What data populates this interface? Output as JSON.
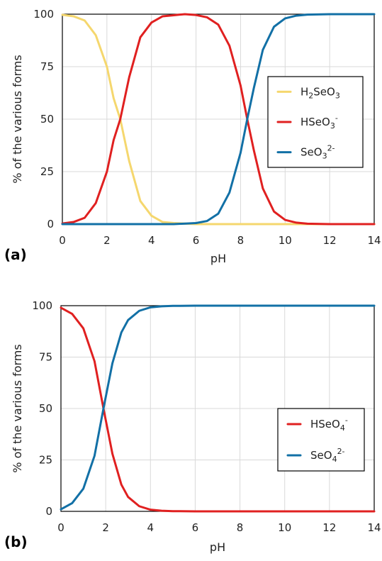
{
  "chart_data": [
    {
      "type": "line",
      "panel_label": "(a)",
      "xlabel": "pH",
      "ylabel": "% of the various forms",
      "xlim": [
        0,
        14
      ],
      "ylim": [
        0,
        100
      ],
      "xticks": [
        "0",
        "2",
        "4",
        "6",
        "8",
        "10",
        "12",
        "14"
      ],
      "yticks": [
        "0",
        "25",
        "50",
        "75",
        "100"
      ],
      "grid": true,
      "legend_position": "right-center",
      "series": [
        {
          "name": "H2SeO3",
          "label_base": "H",
          "label_sub1": "2",
          "label_mid": "SeO",
          "label_sub2": "3",
          "label_sup": "",
          "color": "#f5d76e",
          "x": [
            0,
            0.5,
            1,
            1.5,
            2,
            2.3,
            2.6,
            3,
            3.5,
            4,
            4.5,
            5,
            6,
            8,
            10,
            14
          ],
          "y": [
            99.7,
            99,
            97,
            90,
            75,
            60,
            50,
            30,
            11,
            4,
            1,
            0.5,
            0,
            0,
            0,
            0
          ]
        },
        {
          "name": "HSeO3-",
          "label_base": "HSeO",
          "label_sub1": "3",
          "label_mid": "",
          "label_sub2": "",
          "label_sup": "-",
          "color": "#e02020",
          "x": [
            0,
            0.5,
            1,
            1.5,
            2,
            2.3,
            2.6,
            3,
            3.5,
            4,
            4.5,
            5,
            5.5,
            6,
            6.5,
            7,
            7.5,
            8,
            8.3,
            8.6,
            9,
            9.5,
            10,
            10.5,
            11,
            12,
            14
          ],
          "y": [
            0.3,
            1,
            3,
            10,
            25,
            40,
            50,
            70,
            89,
            96,
            99,
            99.5,
            100,
            99.6,
            98.5,
            95,
            85,
            66,
            50,
            35,
            17,
            6,
            2,
            0.7,
            0.2,
            0,
            0
          ]
        },
        {
          "name": "SeO3 2-",
          "label_base": "SeO",
          "label_sub1": "3",
          "label_mid": "",
          "label_sub2": "",
          "label_sup": "2-",
          "color": "#1270a6",
          "x": [
            0,
            5,
            6,
            6.5,
            7,
            7.5,
            8,
            8.3,
            8.6,
            9,
            9.5,
            10,
            10.5,
            11,
            12,
            14
          ],
          "y": [
            0,
            0,
            0.5,
            1.5,
            5,
            15,
            34,
            50,
            65,
            83,
            94,
            98,
            99.3,
            99.8,
            100,
            100
          ]
        }
      ]
    },
    {
      "type": "line",
      "panel_label": "(b)",
      "xlabel": "pH",
      "ylabel": "% of the various forms",
      "xlim": [
        0,
        14
      ],
      "ylim": [
        0,
        100
      ],
      "xticks": [
        "0",
        "2",
        "4",
        "6",
        "8",
        "10",
        "12",
        "14"
      ],
      "yticks": [
        "0",
        "25",
        "50",
        "75",
        "100"
      ],
      "grid": true,
      "legend_position": "right-lower",
      "series": [
        {
          "name": "HSeO4-",
          "label_base": "HSeO",
          "label_sub1": "4",
          "label_mid": "",
          "label_sub2": "",
          "label_sup": "-",
          "color": "#e02020",
          "x": [
            0,
            0.5,
            1,
            1.5,
            1.9,
            2.3,
            2.7,
            3,
            3.5,
            4,
            4.5,
            5,
            6,
            14
          ],
          "y": [
            99,
            96,
            89,
            73,
            50,
            28,
            13,
            7,
            2.5,
            0.8,
            0.3,
            0.1,
            0,
            0
          ]
        },
        {
          "name": "SeO4 2-",
          "label_base": "SeO",
          "label_sub1": "4",
          "label_mid": "",
          "label_sub2": "",
          "label_sup": "2-",
          "color": "#1270a6",
          "x": [
            0,
            0.5,
            1,
            1.5,
            1.9,
            2.3,
            2.7,
            3,
            3.5,
            4,
            4.5,
            5,
            6,
            14
          ],
          "y": [
            1,
            4,
            11,
            27,
            50,
            72,
            87,
            93,
            97.5,
            99.2,
            99.7,
            99.9,
            100,
            100
          ]
        }
      ]
    }
  ]
}
